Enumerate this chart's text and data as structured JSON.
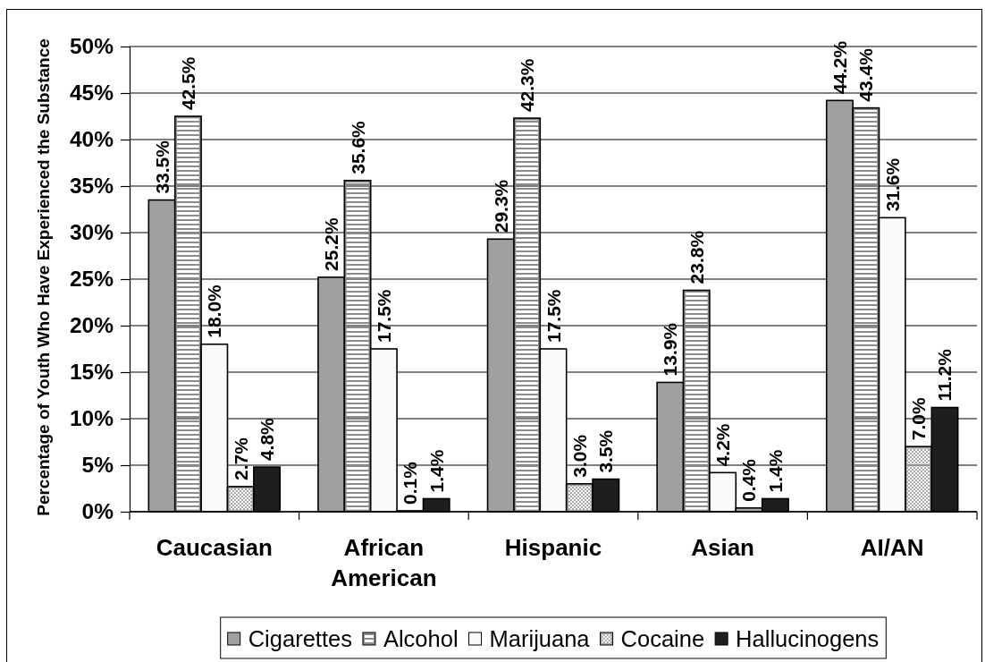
{
  "chart_data": {
    "type": "bar",
    "ylabel": "Percentage of Youth Who Have Experienced the Substance",
    "categories": [
      "Caucasian",
      "African American",
      "Hispanic",
      "Asian",
      "AI/AN"
    ],
    "series": [
      {
        "name": "Cigarettes",
        "color": "#a0a0a0",
        "values": [
          33.5,
          25.2,
          29.3,
          13.9,
          44.2
        ],
        "value_labels": [
          "33.5%",
          "25.2%",
          "29.3%",
          "13.9%",
          "44.2%"
        ]
      },
      {
        "name": "Alcohol",
        "color": "#8c8c8c",
        "values": [
          42.5,
          35.6,
          42.3,
          23.8,
          43.4
        ],
        "value_labels": [
          "42.5%",
          "35.6%",
          "42.3%",
          "23.8%",
          "43.4%"
        ]
      },
      {
        "name": "Marijuana",
        "color": "#fafafa",
        "values": [
          18.0,
          17.5,
          17.5,
          4.2,
          31.6
        ],
        "value_labels": [
          "18.0%",
          "17.5%",
          "17.5%",
          "4.2%",
          "31.6%"
        ]
      },
      {
        "name": "Cocaine",
        "color": "#a8a8a8",
        "values": [
          2.7,
          0.1,
          3.0,
          0.4,
          7.0
        ],
        "value_labels": [
          "2.7%",
          "0.1%",
          "3.0%",
          "0.4%",
          "7.0%"
        ]
      },
      {
        "name": "Hallucinogens",
        "color": "#1e1e1e",
        "values": [
          4.8,
          1.4,
          3.5,
          1.4,
          11.2
        ],
        "value_labels": [
          "4.8%",
          "1.4%",
          "3.5%",
          "1.4%",
          "11.2%"
        ]
      }
    ],
    "ylim": [
      0,
      50
    ],
    "yticks": [
      {
        "value": 0,
        "label": "0%"
      },
      {
        "value": 5,
        "label": "5%"
      },
      {
        "value": 10,
        "label": "10%"
      },
      {
        "value": 15,
        "label": "15%"
      },
      {
        "value": 20,
        "label": "20%"
      },
      {
        "value": 25,
        "label": "25%"
      },
      {
        "value": 30,
        "label": "30%"
      },
      {
        "value": 35,
        "label": "35%"
      },
      {
        "value": 40,
        "label": "40%"
      },
      {
        "value": 45,
        "label": "45%"
      },
      {
        "value": 50,
        "label": "50%"
      }
    ],
    "grid": "y",
    "legend": "bottom"
  }
}
